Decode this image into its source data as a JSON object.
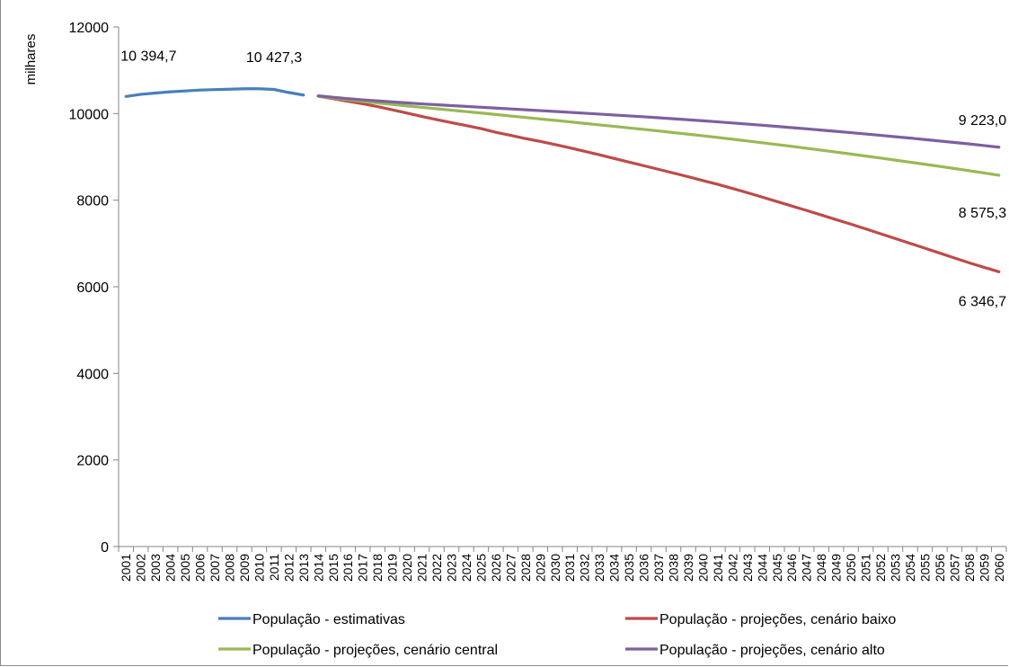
{
  "chart_data": {
    "type": "line",
    "title": "",
    "xlabel": "",
    "ylabel": "milhares",
    "ylim": [
      0,
      12000
    ],
    "yticks": [
      0,
      2000,
      4000,
      6000,
      8000,
      10000,
      12000
    ],
    "x": [
      2001,
      2002,
      2003,
      2004,
      2005,
      2006,
      2007,
      2008,
      2009,
      2010,
      2011,
      2012,
      2013,
      2014,
      2015,
      2016,
      2017,
      2018,
      2019,
      2020,
      2021,
      2022,
      2023,
      2024,
      2025,
      2026,
      2027,
      2028,
      2029,
      2030,
      2031,
      2032,
      2033,
      2034,
      2035,
      2036,
      2037,
      2038,
      2039,
      2040,
      2041,
      2042,
      2043,
      2044,
      2045,
      2046,
      2047,
      2048,
      2049,
      2050,
      2051,
      2052,
      2053,
      2054,
      2055,
      2056,
      2057,
      2058,
      2059,
      2060
    ],
    "grid": false,
    "legend_position": "bottom",
    "series": [
      {
        "name": "População - estimativas",
        "color": "#4a7ebb",
        "x": [
          2001,
          2002,
          2003,
          2004,
          2005,
          2006,
          2007,
          2008,
          2009,
          2010,
          2011,
          2012,
          2013
        ],
        "values": [
          10394.7,
          10444,
          10474,
          10502,
          10522,
          10543,
          10553,
          10563,
          10573,
          10573,
          10557,
          10487,
          10427.3
        ]
      },
      {
        "name": "População - projeções, cenário baixo",
        "color": "#be4b48",
        "x": [
          2014,
          2015,
          2016,
          2017,
          2018,
          2019,
          2020,
          2021,
          2022,
          2023,
          2024,
          2025,
          2026,
          2027,
          2028,
          2029,
          2030,
          2031,
          2032,
          2033,
          2034,
          2035,
          2036,
          2037,
          2038,
          2039,
          2040,
          2041,
          2042,
          2043,
          2044,
          2045,
          2046,
          2047,
          2048,
          2049,
          2050,
          2051,
          2052,
          2053,
          2054,
          2055,
          2056,
          2057,
          2058,
          2059,
          2060
        ],
        "values": [
          10401,
          10342,
          10285,
          10227,
          10161,
          10086,
          10010,
          9933,
          9861,
          9791,
          9723,
          9653,
          9568,
          9497,
          9423,
          9357,
          9285,
          9208,
          9128,
          9049,
          8963,
          8880,
          8795,
          8712,
          8626,
          8541,
          8452,
          8365,
          8270,
          8172,
          8071,
          7968,
          7865,
          7762,
          7657,
          7551,
          7446,
          7336,
          7225,
          7113,
          7002,
          6890,
          6777,
          6665,
          6553,
          6448,
          6346.7
        ]
      },
      {
        "name": "População - projeções, cenário central",
        "color": "#98b954",
        "x": [
          2014,
          2015,
          2016,
          2017,
          2018,
          2019,
          2020,
          2021,
          2022,
          2023,
          2024,
          2025,
          2026,
          2027,
          2028,
          2029,
          2030,
          2031,
          2032,
          2033,
          2034,
          2035,
          2036,
          2037,
          2038,
          2039,
          2040,
          2041,
          2042,
          2043,
          2044,
          2045,
          2046,
          2047,
          2048,
          2049,
          2050,
          2051,
          2052,
          2053,
          2054,
          2055,
          2056,
          2057,
          2058,
          2059,
          2060
        ],
        "values": [
          10402,
          10358,
          10320,
          10282,
          10245,
          10210,
          10176,
          10143,
          10110,
          10078,
          10044,
          10012,
          9978,
          9943,
          9910,
          9876,
          9843,
          9808,
          9773,
          9738,
          9704,
          9669,
          9634,
          9598,
          9561,
          9524,
          9486,
          9447,
          9407,
          9367,
          9326,
          9284,
          9242,
          9199,
          9155,
          9110,
          9065,
          9018,
          8972,
          8925,
          8877,
          8829,
          8780,
          8730,
          8680,
          8628,
          8575.3
        ]
      },
      {
        "name": "População - projeções, cenário alto",
        "color": "#7d60a0",
        "x": [
          2014,
          2015,
          2016,
          2017,
          2018,
          2019,
          2020,
          2021,
          2022,
          2023,
          2024,
          2025,
          2026,
          2027,
          2028,
          2029,
          2030,
          2031,
          2032,
          2033,
          2034,
          2035,
          2036,
          2037,
          2038,
          2039,
          2040,
          2041,
          2042,
          2043,
          2044,
          2045,
          2046,
          2047,
          2048,
          2049,
          2050,
          2051,
          2052,
          2053,
          2054,
          2055,
          2056,
          2057,
          2058,
          2059,
          2060
        ],
        "values": [
          10410,
          10375,
          10344,
          10317,
          10293,
          10269,
          10246,
          10224,
          10204,
          10184,
          10165,
          10146,
          10126,
          10107,
          10088,
          10068,
          10049,
          10029,
          10008,
          9988,
          9967,
          9946,
          9925,
          9903,
          9880,
          9857,
          9833,
          9808,
          9783,
          9757,
          9730,
          9703,
          9675,
          9647,
          9618,
          9589,
          9559,
          9528,
          9497,
          9465,
          9433,
          9400,
          9366,
          9332,
          9298,
          9261,
          9223.0
        ]
      }
    ],
    "data_labels": [
      {
        "text": "10 394,7",
        "series": 0,
        "x": 2001
      },
      {
        "text": "10 427,3",
        "series": 0,
        "x": 2013
      },
      {
        "text": "9 223,0",
        "series": 3,
        "x": 2060
      },
      {
        "text": "8 575,3",
        "series": 2,
        "x": 2060
      },
      {
        "text": "6 346,7",
        "series": 1,
        "x": 2060
      }
    ]
  }
}
